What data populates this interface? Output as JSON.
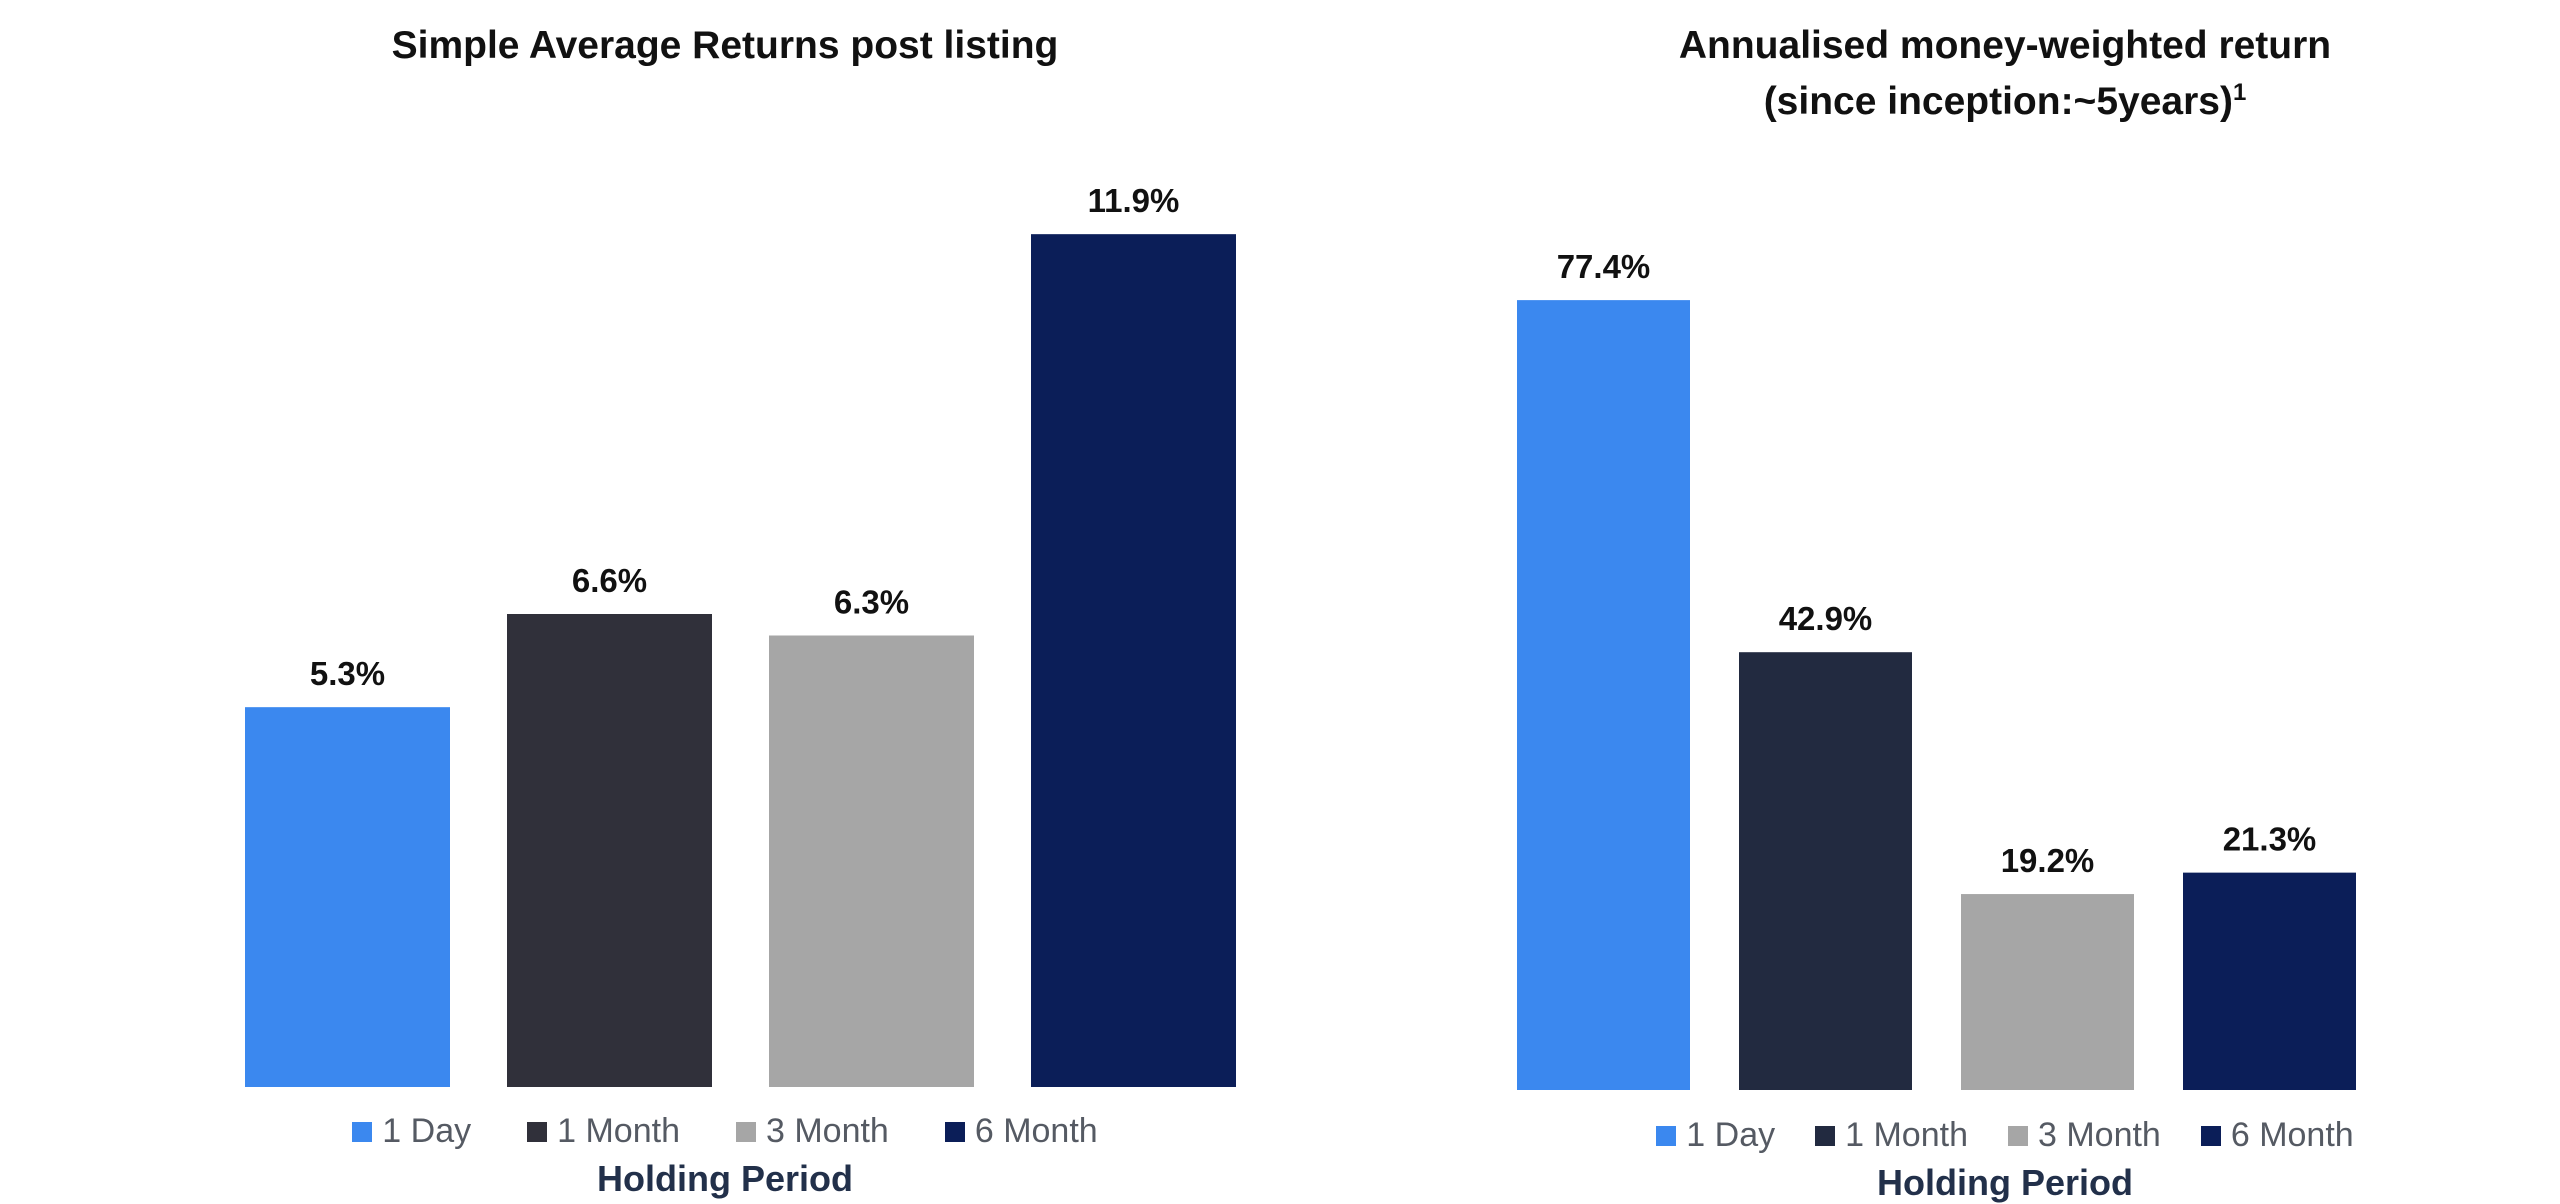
{
  "colors": {
    "1 Day": "#3b88ef",
    "1 Month": "#30303a",
    "3 Month": "#a6a6a6",
    "6 Month": "#0b1e58",
    "right_1_Month": "#222a40",
    "label_text": "#111111",
    "axis_title": "#22304a"
  },
  "chart_data": [
    {
      "type": "bar",
      "title": "Simple Average Returns post listing",
      "title_line2": "",
      "title_sup": "",
      "xlabel": "Holding Period",
      "ylabel": "",
      "categories": [
        "1 Day",
        "1 Month",
        "3 Month",
        "6 Month"
      ],
      "values": [
        5.3,
        6.6,
        6.3,
        11.9
      ],
      "data_labels": [
        "5.3%",
        "6.6%",
        "6.3%",
        "11.9%"
      ],
      "legend": [
        "1 Day",
        "1 Month",
        "3 Month",
        "6 Month"
      ],
      "legend_position": "bottom",
      "grid": false,
      "ylim": [
        0,
        12
      ]
    },
    {
      "type": "bar",
      "title": "Annualised money-weighted return",
      "title_line2": "(since inception:~5years)",
      "title_sup": "1",
      "xlabel": "Holding Period",
      "ylabel": "",
      "categories": [
        "1 Day",
        "1 Month",
        "3 Month",
        "6 Month"
      ],
      "values": [
        77.4,
        42.9,
        19.2,
        21.3
      ],
      "data_labels": [
        "77.4%",
        "42.9%",
        "19.2%",
        "21.3%"
      ],
      "legend": [
        "1 Day",
        "1 Month",
        "3 Month",
        "6 Month"
      ],
      "legend_position": "bottom",
      "grid": false,
      "ylim": [
        0,
        78
      ]
    }
  ]
}
